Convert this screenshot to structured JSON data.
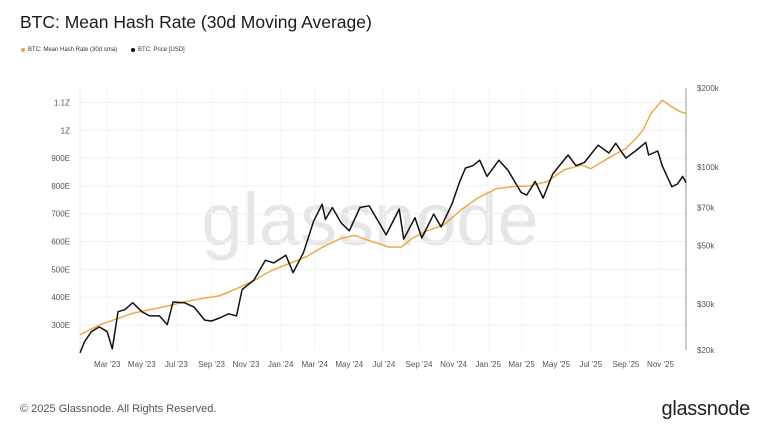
{
  "title": "BTC: Mean Hash Rate (30d Moving Average)",
  "footer": "© 2025 Glassnode. All Rights Reserved.",
  "logo": "glassnode",
  "watermark": "glassnode",
  "chart_data": {
    "type": "line",
    "title": "BTC: Mean Hash Rate (30d Moving Average)",
    "legend_placement": "top-left",
    "grid": true,
    "xlim": [
      "2023-01-12",
      "2025-12-16"
    ],
    "x_ticks": [
      {
        "date": "2023-03-01",
        "label": "Mar '23"
      },
      {
        "date": "2023-05-01",
        "label": "May '23"
      },
      {
        "date": "2023-07-01",
        "label": "Jul '23"
      },
      {
        "date": "2023-09-01",
        "label": "Sep '23"
      },
      {
        "date": "2023-11-01",
        "label": "Nov '23"
      },
      {
        "date": "2024-01-01",
        "label": "Jan '24"
      },
      {
        "date": "2024-03-01",
        "label": "Mar '24"
      },
      {
        "date": "2024-05-01",
        "label": "May '24"
      },
      {
        "date": "2024-07-01",
        "label": "Jul '24"
      },
      {
        "date": "2024-09-01",
        "label": "Sep '24"
      },
      {
        "date": "2024-11-01",
        "label": "Nov '24"
      },
      {
        "date": "2025-01-01",
        "label": "Jan '25"
      },
      {
        "date": "2025-03-01",
        "label": "Mar '25"
      },
      {
        "date": "2025-05-01",
        "label": "May '25"
      },
      {
        "date": "2025-07-01",
        "label": "Jul '25"
      },
      {
        "date": "2025-09-01",
        "label": "Sep '25"
      },
      {
        "date": "2025-11-01",
        "label": "Nov '25"
      }
    ],
    "y_left": {
      "scale": "linear",
      "unit": "EH/s",
      "ylim": [
        210,
        1152
      ],
      "ticks": [
        {
          "value": 300,
          "label": "300E"
        },
        {
          "value": 400,
          "label": "400E"
        },
        {
          "value": 500,
          "label": "500E"
        },
        {
          "value": 600,
          "label": "600E"
        },
        {
          "value": 700,
          "label": "700E"
        },
        {
          "value": 800,
          "label": "800E"
        },
        {
          "value": 900,
          "label": "900E"
        },
        {
          "value": 1000,
          "label": "1Z"
        },
        {
          "value": 1100,
          "label": "1.1Z"
        }
      ]
    },
    "y_right": {
      "scale": "log",
      "unit": "USD",
      "ylim": [
        20000,
        200000
      ],
      "ticks": [
        {
          "value": 20000,
          "label": "$20k"
        },
        {
          "value": 30000,
          "label": "$30k"
        },
        {
          "value": 50000,
          "label": "$50k"
        },
        {
          "value": 70000,
          "label": "$70k"
        },
        {
          "value": 100000,
          "label": "$100k"
        },
        {
          "value": 200000,
          "label": "$200k"
        }
      ]
    },
    "series": [
      {
        "name": "BTC: Mean Hash Rate (30d sma)",
        "axis": "left",
        "color": "#eea43a",
        "points": [
          [
            "2023-01-12",
            265
          ],
          [
            "2023-02-15",
            300
          ],
          [
            "2023-03-15",
            320
          ],
          [
            "2023-04-15",
            342
          ],
          [
            "2023-05-15",
            355
          ],
          [
            "2023-06-15",
            368
          ],
          [
            "2023-07-15",
            383
          ],
          [
            "2023-08-15",
            395
          ],
          [
            "2023-09-15",
            405
          ],
          [
            "2023-10-15",
            430
          ],
          [
            "2023-11-15",
            460
          ],
          [
            "2023-12-15",
            495
          ],
          [
            "2024-01-15",
            520
          ],
          [
            "2024-02-15",
            545
          ],
          [
            "2024-03-15",
            580
          ],
          [
            "2024-04-15",
            610
          ],
          [
            "2024-05-10",
            622
          ],
          [
            "2024-06-10",
            600
          ],
          [
            "2024-07-10",
            580
          ],
          [
            "2024-08-01",
            580
          ],
          [
            "2024-08-20",
            612
          ],
          [
            "2024-09-15",
            638
          ],
          [
            "2024-10-15",
            660
          ],
          [
            "2024-11-15",
            715
          ],
          [
            "2024-12-15",
            758
          ],
          [
            "2025-01-15",
            790
          ],
          [
            "2025-02-15",
            798
          ],
          [
            "2025-03-15",
            800
          ],
          [
            "2025-04-15",
            815
          ],
          [
            "2025-05-15",
            858
          ],
          [
            "2025-06-15",
            875
          ],
          [
            "2025-07-01",
            862
          ],
          [
            "2025-08-01",
            900
          ],
          [
            "2025-09-01",
            935
          ],
          [
            "2025-09-15",
            962
          ],
          [
            "2025-10-01",
            1000
          ],
          [
            "2025-10-15",
            1060
          ],
          [
            "2025-11-04",
            1108
          ],
          [
            "2025-11-20",
            1085
          ],
          [
            "2025-12-05",
            1068
          ],
          [
            "2025-12-16",
            1060
          ]
        ]
      },
      {
        "name": "BTC: Price [USD]",
        "axis": "right",
        "color": "#111111",
        "points": [
          [
            "2023-01-12",
            19500
          ],
          [
            "2023-01-20",
            21500
          ],
          [
            "2023-02-01",
            23500
          ],
          [
            "2023-02-15",
            24500
          ],
          [
            "2023-03-01",
            23500
          ],
          [
            "2023-03-10",
            20200
          ],
          [
            "2023-03-20",
            28000
          ],
          [
            "2023-04-01",
            28500
          ],
          [
            "2023-04-15",
            30300
          ],
          [
            "2023-05-01",
            28000
          ],
          [
            "2023-05-15",
            27000
          ],
          [
            "2023-06-01",
            27000
          ],
          [
            "2023-06-15",
            25000
          ],
          [
            "2023-06-25",
            30500
          ],
          [
            "2023-07-15",
            30300
          ],
          [
            "2023-08-01",
            29200
          ],
          [
            "2023-08-20",
            26000
          ],
          [
            "2023-09-01",
            25800
          ],
          [
            "2023-09-15",
            26500
          ],
          [
            "2023-10-01",
            27500
          ],
          [
            "2023-10-15",
            27000
          ],
          [
            "2023-10-25",
            34000
          ],
          [
            "2023-11-15",
            37000
          ],
          [
            "2023-12-05",
            44000
          ],
          [
            "2023-12-20",
            43000
          ],
          [
            "2024-01-10",
            46000
          ],
          [
            "2024-01-23",
            39500
          ],
          [
            "2024-02-10",
            47000
          ],
          [
            "2024-02-28",
            62000
          ],
          [
            "2024-03-14",
            72000
          ],
          [
            "2024-03-20",
            63000
          ],
          [
            "2024-04-01",
            70000
          ],
          [
            "2024-04-17",
            61000
          ],
          [
            "2024-05-01",
            57000
          ],
          [
            "2024-05-20",
            70000
          ],
          [
            "2024-06-05",
            71000
          ],
          [
            "2024-06-25",
            60000
          ],
          [
            "2024-07-05",
            55000
          ],
          [
            "2024-07-28",
            69000
          ],
          [
            "2024-08-05",
            53000
          ],
          [
            "2024-08-25",
            64000
          ],
          [
            "2024-09-06",
            53500
          ],
          [
            "2024-09-27",
            66000
          ],
          [
            "2024-10-10",
            59000
          ],
          [
            "2024-10-29",
            72000
          ],
          [
            "2024-11-12",
            88000
          ],
          [
            "2024-11-22",
            99000
          ],
          [
            "2024-12-05",
            101000
          ],
          [
            "2024-12-17",
            106000
          ],
          [
            "2024-12-30",
            92000
          ],
          [
            "2025-01-20",
            106000
          ],
          [
            "2025-02-05",
            97000
          ],
          [
            "2025-02-28",
            80000
          ],
          [
            "2025-03-10",
            78000
          ],
          [
            "2025-03-25",
            88000
          ],
          [
            "2025-04-08",
            76000
          ],
          [
            "2025-04-25",
            94000
          ],
          [
            "2025-05-22",
            111000
          ],
          [
            "2025-06-05",
            101000
          ],
          [
            "2025-06-20",
            104000
          ],
          [
            "2025-07-14",
            121000
          ],
          [
            "2025-08-02",
            113000
          ],
          [
            "2025-08-14",
            123000
          ],
          [
            "2025-09-01",
            108000
          ],
          [
            "2025-09-20",
            116000
          ],
          [
            "2025-10-06",
            124000
          ],
          [
            "2025-10-11",
            111000
          ],
          [
            "2025-10-27",
            115000
          ],
          [
            "2025-11-04",
            101000
          ],
          [
            "2025-11-21",
            84000
          ],
          [
            "2025-12-01",
            86000
          ],
          [
            "2025-12-10",
            92000
          ],
          [
            "2025-12-16",
            87000
          ]
        ]
      }
    ]
  }
}
